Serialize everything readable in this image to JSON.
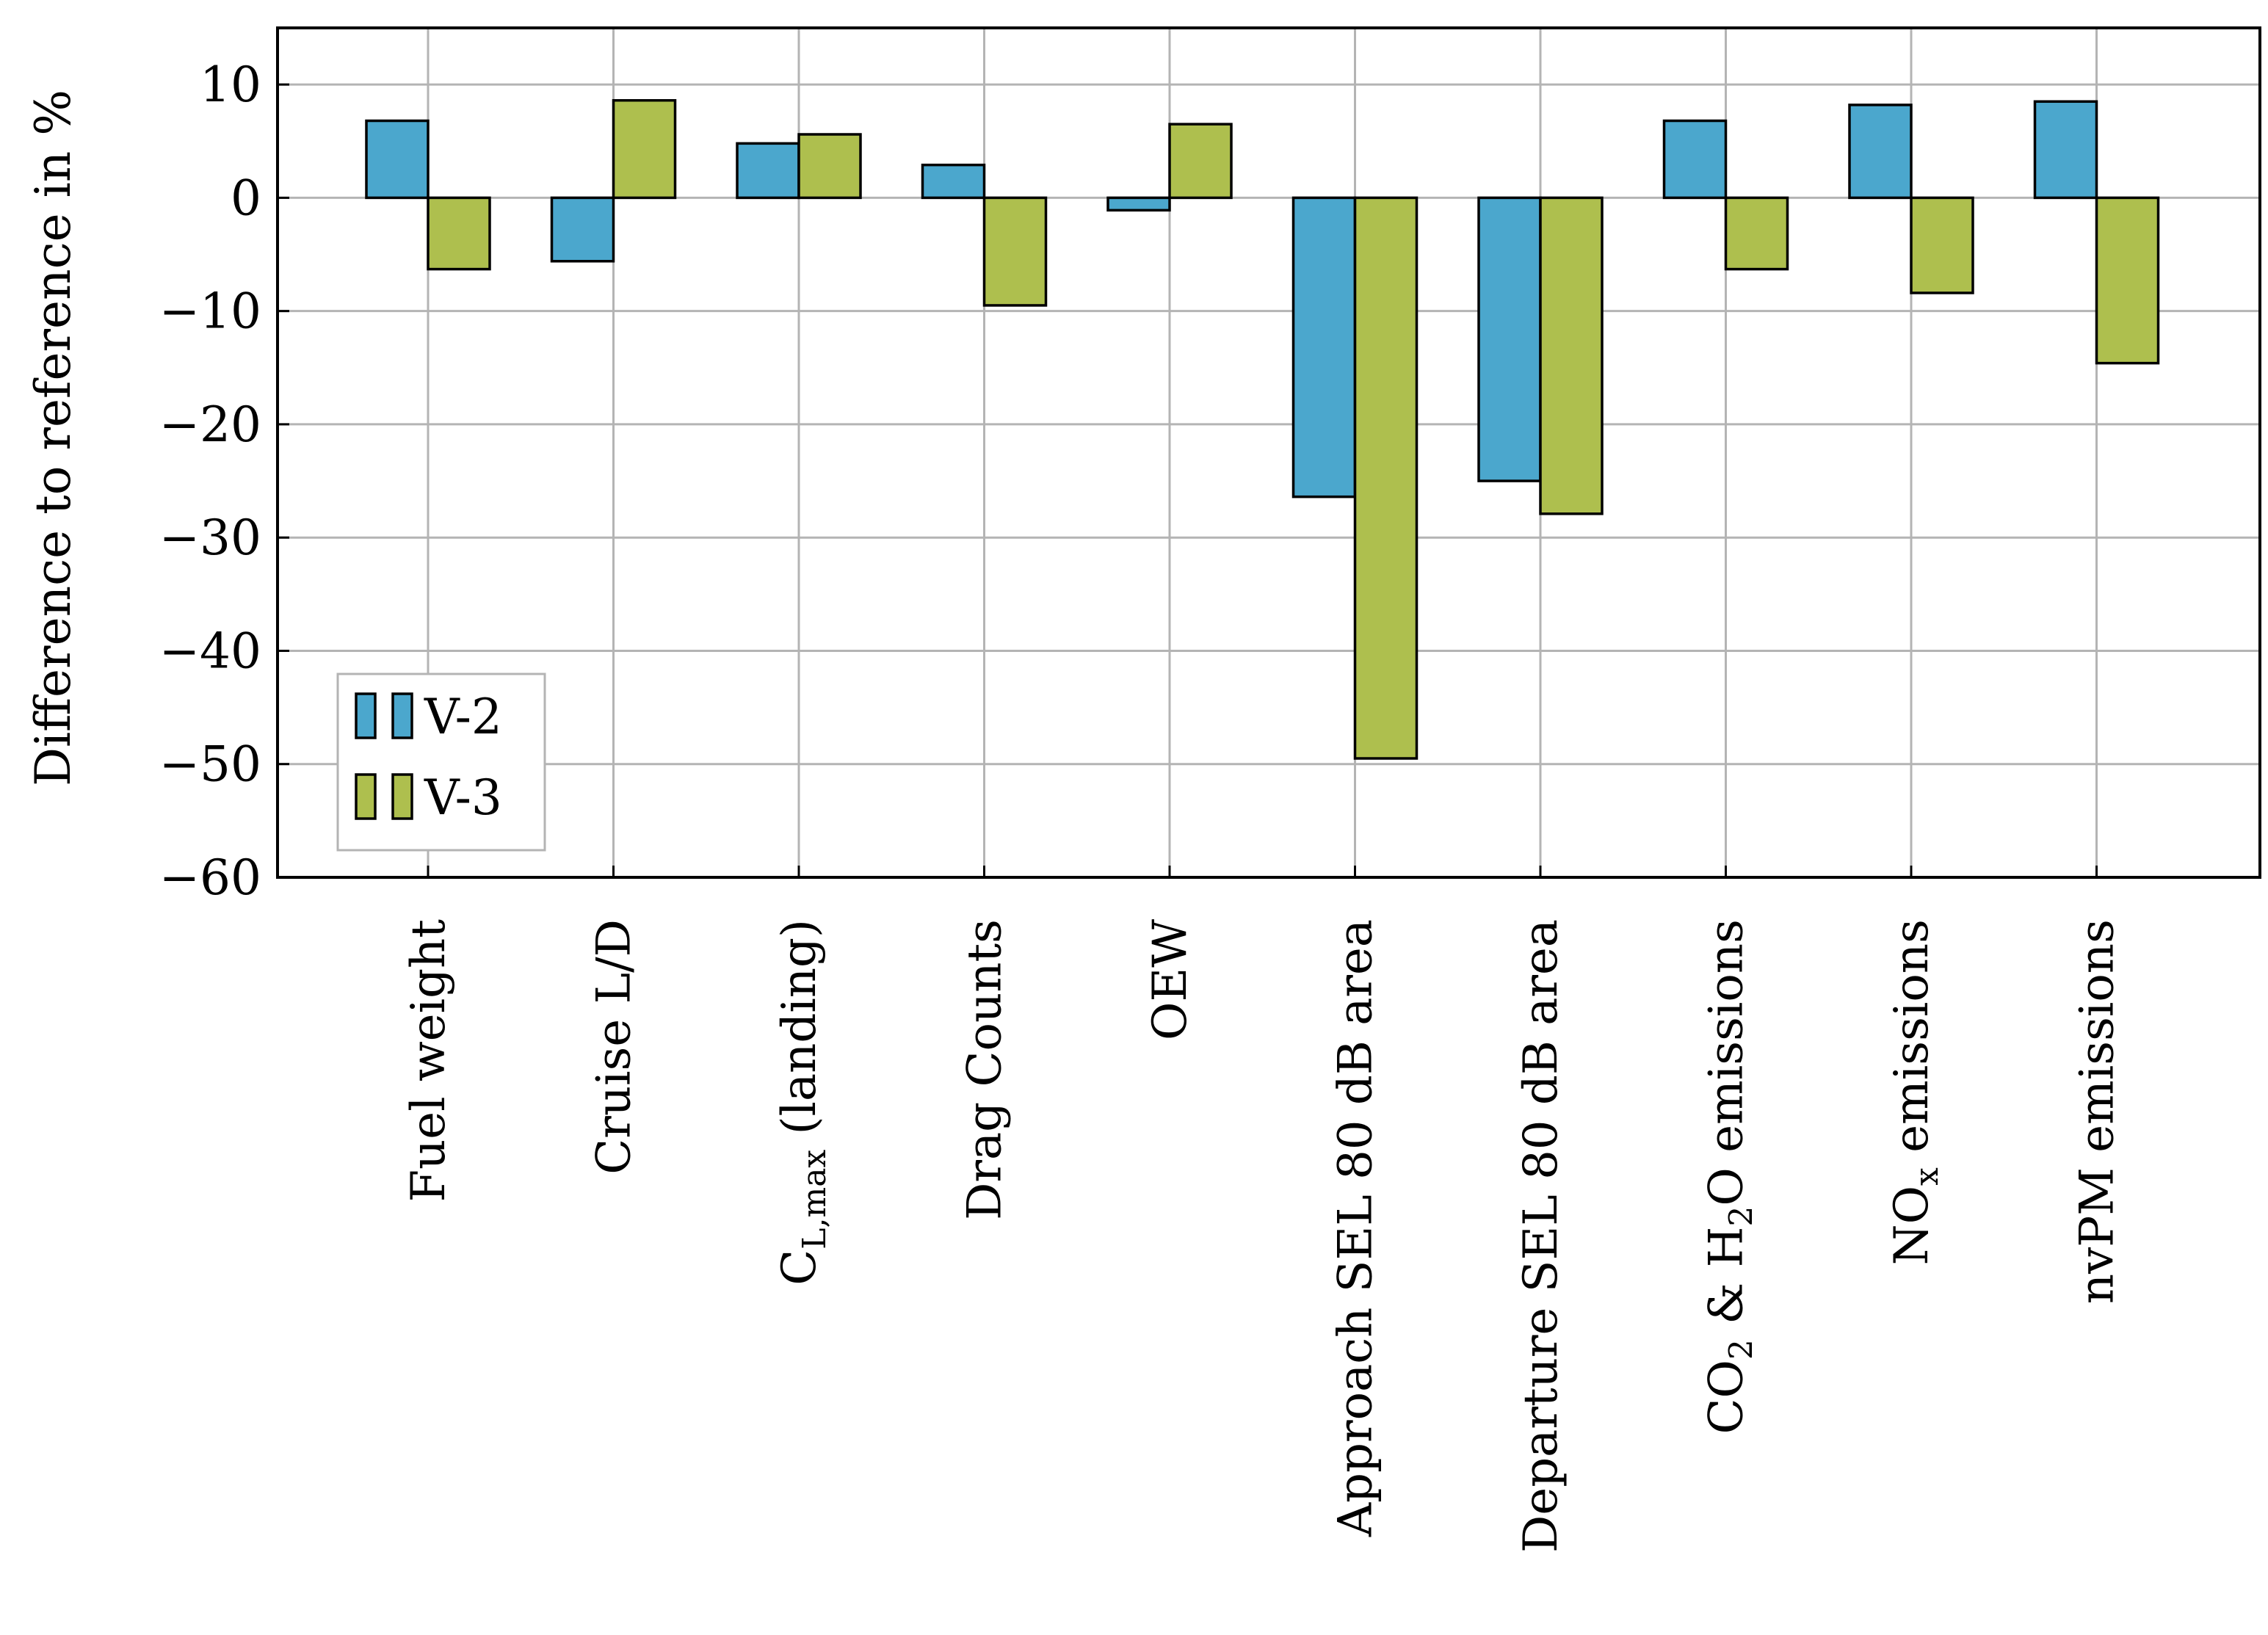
{
  "chart_data": {
    "type": "bar",
    "ylabel": "Difference to reference in %",
    "ylim": [
      -60,
      15
    ],
    "yticks": [
      10,
      0,
      -10,
      -20,
      -30,
      -40,
      -50,
      -60
    ],
    "ytick_labels": [
      "10",
      "0",
      "−10",
      "−20",
      "−30",
      "−40",
      "−50",
      "−60"
    ],
    "grid": true,
    "legend_position": "lower-left",
    "categories": [
      {
        "text": "Fuel weight"
      },
      {
        "text": "Cruise L/D"
      },
      {
        "text": "C",
        "sub": "L,max",
        "after": " (landing)"
      },
      {
        "text": "Drag Counts"
      },
      {
        "text": "OEW"
      },
      {
        "text": "Approach SEL 80 dB area"
      },
      {
        "text": "Departure SEL 80 dB area"
      },
      {
        "text": "CO",
        "sub": "2",
        "after": " & H",
        "sub2": "2",
        "after2": "O emissions"
      },
      {
        "text": "NO",
        "sub": "x",
        "after": " emissions"
      },
      {
        "text": "nvPM emissions"
      }
    ],
    "series": [
      {
        "name": "V-2",
        "color": "#4ba7cd",
        "values": [
          6.8,
          -5.6,
          4.8,
          2.9,
          -1.1,
          -26.4,
          -25.0,
          6.8,
          8.2,
          8.5
        ]
      },
      {
        "name": "V-3",
        "color": "#aebf4e",
        "values": [
          -6.3,
          8.6,
          5.6,
          -9.5,
          6.5,
          -49.5,
          -27.9,
          -6.3,
          -8.4,
          -14.6
        ]
      }
    ]
  }
}
